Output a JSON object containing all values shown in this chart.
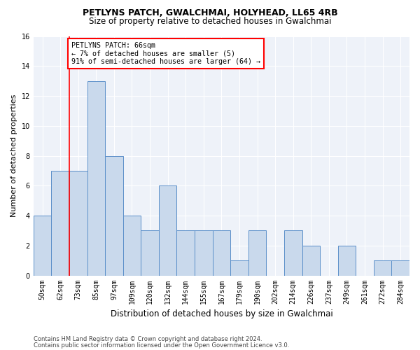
{
  "title1": "PETLYNS PATCH, GWALCHMAI, HOLYHEAD, LL65 4RB",
  "title2": "Size of property relative to detached houses in Gwalchmai",
  "xlabel": "Distribution of detached houses by size in Gwalchmai",
  "ylabel": "Number of detached properties",
  "categories": [
    "50sqm",
    "62sqm",
    "73sqm",
    "85sqm",
    "97sqm",
    "109sqm",
    "120sqm",
    "132sqm",
    "144sqm",
    "155sqm",
    "167sqm",
    "179sqm",
    "190sqm",
    "202sqm",
    "214sqm",
    "226sqm",
    "237sqm",
    "249sqm",
    "261sqm",
    "272sqm",
    "284sqm"
  ],
  "values": [
    4,
    7,
    7,
    13,
    8,
    4,
    3,
    6,
    3,
    3,
    3,
    1,
    3,
    0,
    3,
    2,
    0,
    2,
    0,
    1,
    1
  ],
  "bar_color": "#c9d9ec",
  "bar_edge_color": "#5b8fc9",
  "red_line_x": 1.5,
  "annotation_text": "PETLYNS PATCH: 66sqm\n← 7% of detached houses are smaller (5)\n91% of semi-detached houses are larger (64) →",
  "annotation_box_color": "white",
  "annotation_edge_color": "red",
  "ylim": [
    0,
    16
  ],
  "yticks": [
    0,
    2,
    4,
    6,
    8,
    10,
    12,
    14,
    16
  ],
  "footnote1": "Contains HM Land Registry data © Crown copyright and database right 2024.",
  "footnote2": "Contains public sector information licensed under the Open Government Licence v3.0.",
  "background_color": "#eef2f9",
  "grid_color": "#ffffff",
  "title1_fontsize": 9,
  "title2_fontsize": 8.5,
  "ylabel_fontsize": 8,
  "xlabel_fontsize": 8.5,
  "tick_fontsize": 7,
  "footnote_fontsize": 6
}
